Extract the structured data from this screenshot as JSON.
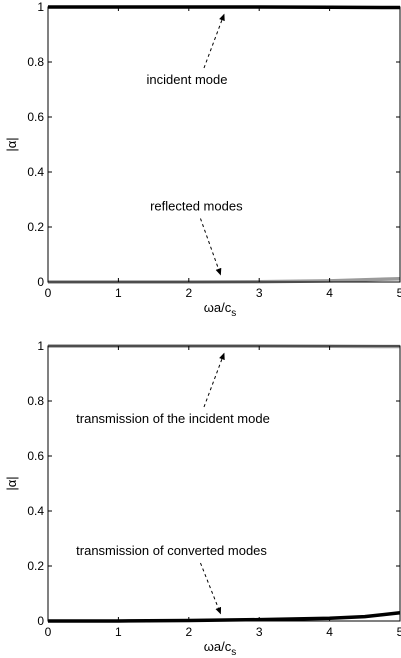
{
  "chart_data": [
    {
      "type": "line",
      "xlabel": "ωa/c",
      "xlabel_sub": "s",
      "ylabel": "|α|",
      "xlim": [
        0,
        5
      ],
      "ylim": [
        0,
        1
      ],
      "xticks": [
        "0",
        "1",
        "2",
        "3",
        "4",
        "5"
      ],
      "yticks": [
        "0",
        "0.2",
        "0.4",
        "0.6",
        "0.8",
        "1"
      ],
      "grid": false,
      "series": [
        {
          "color": "#000000",
          "x": [
            0,
            1,
            2,
            3,
            4,
            5
          ],
          "y": [
            1,
            1,
            1,
            1,
            0.999,
            0.998
          ]
        },
        {
          "color": "#9a9a9a",
          "x": [
            0,
            1,
            2,
            3,
            4,
            5
          ],
          "y": [
            0,
            0,
            0,
            0.001,
            0.004,
            0.012
          ]
        }
      ],
      "annotations": [
        {
          "text": "incident mode",
          "tx": 1.4,
          "ty": 0.72,
          "ax": 2.5,
          "ay": 0.98
        },
        {
          "text": "reflected modes",
          "tx": 1.45,
          "ty": 0.26,
          "ax": 2.45,
          "ay": 0.02
        }
      ]
    },
    {
      "type": "line",
      "xlabel": "ωa/c",
      "xlabel_sub": "s",
      "ylabel": "|α|",
      "xlim": [
        0,
        5
      ],
      "ylim": [
        0,
        1
      ],
      "xticks": [
        "0",
        "1",
        "2",
        "3",
        "4",
        "5"
      ],
      "yticks": [
        "0",
        "0.2",
        "0.4",
        "0.6",
        "0.8",
        "1"
      ],
      "grid": false,
      "series": [
        {
          "color": "#9a9a9a",
          "x": [
            0,
            1,
            2,
            3,
            4,
            5
          ],
          "y": [
            1,
            1,
            1,
            1,
            0.999,
            0.998
          ]
        },
        {
          "color": "#000000",
          "x": [
            0,
            1,
            2,
            3,
            4,
            4.5,
            5
          ],
          "y": [
            0,
            0,
            0.002,
            0.005,
            0.01,
            0.016,
            0.03
          ]
        }
      ],
      "annotations": [
        {
          "text": "transmission of the incident mode",
          "tx": 0.4,
          "ty": 0.72,
          "ax": 2.5,
          "ay": 0.98
        },
        {
          "text": "transmission of converted modes",
          "tx": 0.4,
          "ty": 0.24,
          "ax": 2.45,
          "ay": 0.02
        }
      ]
    }
  ]
}
